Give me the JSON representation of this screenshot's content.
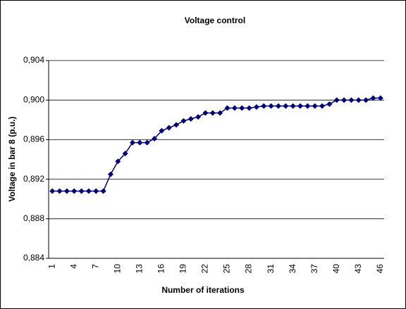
{
  "chart_data": {
    "type": "line",
    "title": "Voltage control",
    "x_label": "Number of iterations",
    "y_label": "Voltage in bar 8 (p.u.)",
    "categories": [
      "1",
      null,
      null,
      "4",
      null,
      null,
      "7",
      null,
      null,
      "10",
      null,
      null,
      "13",
      null,
      null,
      "16",
      null,
      null,
      "19",
      null,
      null,
      "22",
      null,
      null,
      "25",
      null,
      null,
      "28",
      null,
      null,
      "31",
      null,
      null,
      "34",
      null,
      null,
      "37",
      null,
      null,
      "40",
      null,
      null,
      "43",
      null,
      null,
      "46"
    ],
    "series": [
      {
        "name": "Voltage",
        "color": "#000080",
        "values": [
          0.8908,
          0.8908,
          0.8908,
          0.8908,
          0.8908,
          0.8908,
          0.8908,
          0.8908,
          0.8925,
          0.8938,
          0.8946,
          0.8957,
          0.8957,
          0.8957,
          0.8961,
          0.8969,
          0.8972,
          0.8975,
          0.8979,
          0.8981,
          0.8983,
          0.8987,
          0.8987,
          0.8987,
          0.8992,
          0.8992,
          0.8992,
          0.8992,
          0.8993,
          0.8994,
          0.8994,
          0.8994,
          0.8994,
          0.8994,
          0.8994,
          0.8994,
          0.8994,
          0.8994,
          0.8996,
          0.9,
          0.9,
          0.9,
          0.9,
          0.9,
          0.9002,
          0.9002
        ]
      }
    ],
    "ylim": [
      0.884,
      0.904
    ],
    "yticks": [
      {
        "value": 0.884,
        "label": "0,884"
      },
      {
        "value": 0.888,
        "label": "0,888"
      },
      {
        "value": 0.892,
        "label": "0,892"
      },
      {
        "value": 0.896,
        "label": "0,896"
      },
      {
        "value": 0.9,
        "label": "0,900"
      },
      {
        "value": 0.904,
        "label": "0,904"
      }
    ],
    "grid": true
  }
}
